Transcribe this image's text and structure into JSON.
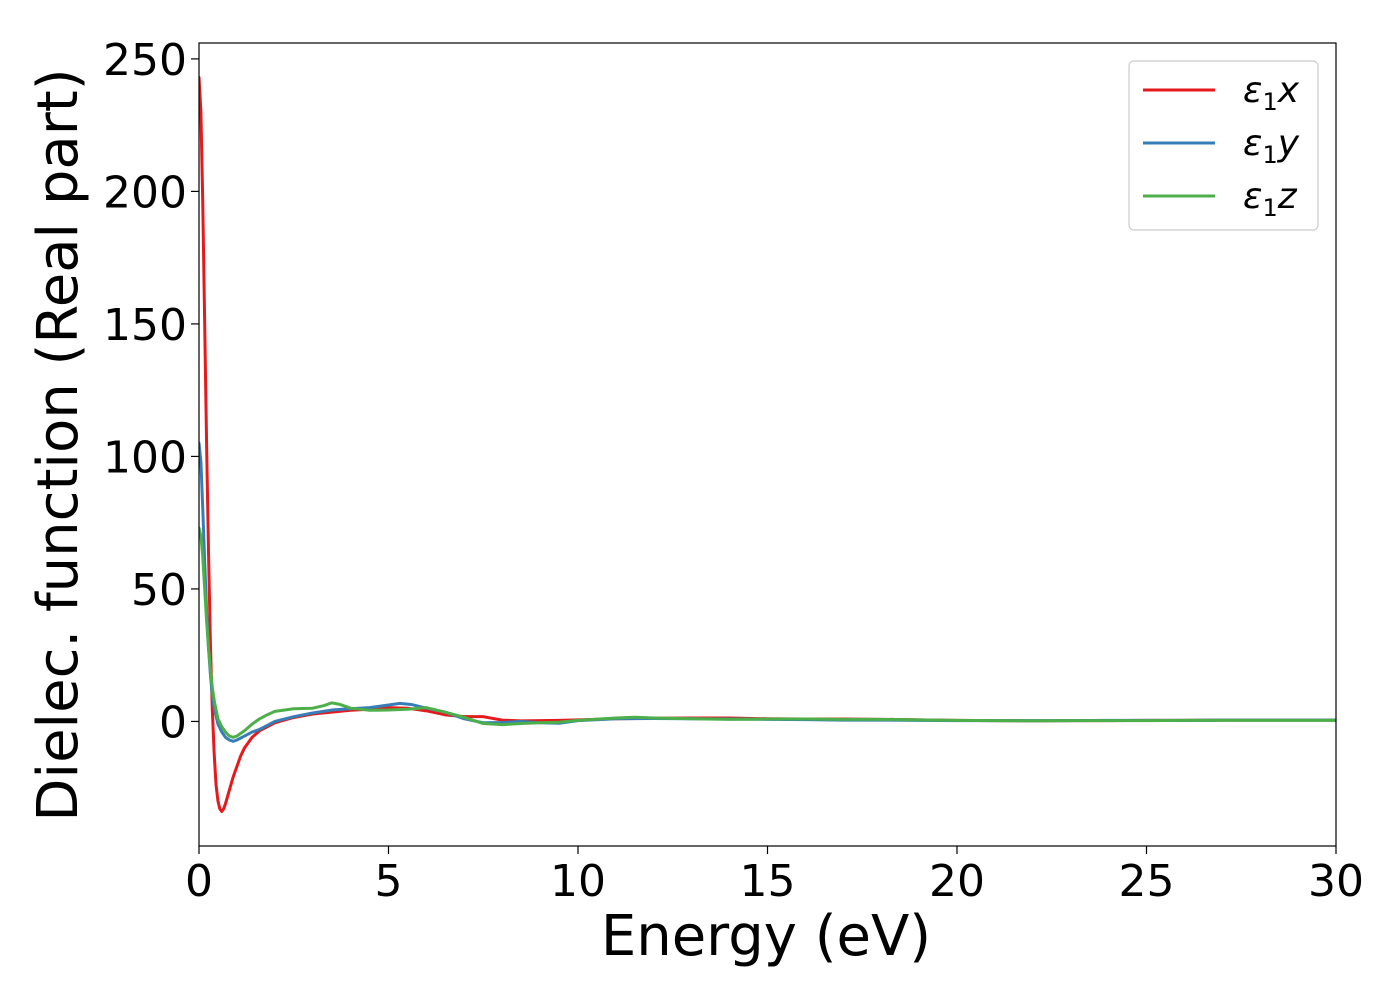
{
  "chart_data": {
    "type": "line",
    "title": "",
    "xlabel": "Energy (eV)",
    "ylabel": "Dielec. function (Real part)",
    "xlim": [
      0,
      30
    ],
    "ylim": [
      -47,
      256
    ],
    "xticks": [
      0,
      5,
      10,
      15,
      20,
      25,
      30
    ],
    "yticks": [
      0,
      50,
      100,
      150,
      200,
      250
    ],
    "xtick_labels": [
      "0",
      "5",
      "10",
      "15",
      "20",
      "25",
      "30"
    ],
    "ytick_labels": [
      "0",
      "50",
      "100",
      "150",
      "200",
      "250"
    ],
    "grid": false,
    "legend_position": "top-right",
    "series": [
      {
        "name": "ε1x",
        "name_base": "ε",
        "name_sub": "1",
        "name_var": "x",
        "color": "#e41a1c",
        "x": [
          0.0,
          0.05,
          0.1,
          0.15,
          0.2,
          0.25,
          0.3,
          0.35,
          0.4,
          0.45,
          0.5,
          0.55,
          0.6,
          0.65,
          0.7,
          0.8,
          0.9,
          1.0,
          1.1,
          1.2,
          1.4,
          1.6,
          1.8,
          2.0,
          2.5,
          3.0,
          3.5,
          4.0,
          4.5,
          5.0,
          5.5,
          6.0,
          6.5,
          7.0,
          7.5,
          8.0,
          8.5,
          9.0,
          9.5,
          10.0,
          11.0,
          12.0,
          13.0,
          14.0,
          15.0,
          16.0,
          17.0,
          18.0,
          19.0,
          20.0,
          21.0,
          22.0,
          23.0,
          24.0,
          25.0,
          26.0,
          27.0,
          28.0,
          29.0,
          30.0
        ],
        "values": [
          243,
          230,
          195,
          150,
          105,
          65,
          30,
          5,
          -12,
          -24,
          -30,
          -33,
          -34,
          -33,
          -31,
          -26,
          -21,
          -17,
          -13,
          -10,
          -6,
          -3.5,
          -2,
          -0.5,
          1.5,
          2.8,
          3.5,
          4.2,
          4.6,
          5.2,
          5.0,
          4.0,
          2.5,
          1.8,
          1.8,
          0.5,
          0.2,
          0.3,
          0.4,
          0.6,
          1.0,
          1.2,
          1.3,
          1.3,
          1.0,
          0.9,
          0.9,
          0.8,
          0.6,
          0.4,
          0.3,
          0.2,
          0.3,
          0.3,
          0.4,
          0.4,
          0.5,
          0.5,
          0.5,
          0.5
        ]
      },
      {
        "name": "ε1y",
        "name_base": "ε",
        "name_sub": "1",
        "name_var": "y",
        "color": "#377eb8",
        "x": [
          0.0,
          0.05,
          0.1,
          0.15,
          0.2,
          0.25,
          0.3,
          0.35,
          0.4,
          0.5,
          0.6,
          0.7,
          0.8,
          0.9,
          1.0,
          1.2,
          1.4,
          1.6,
          1.8,
          2.0,
          2.5,
          3.0,
          3.5,
          4.0,
          4.5,
          5.0,
          5.3,
          5.6,
          6.0,
          6.5,
          7.0,
          7.5,
          8.0,
          8.5,
          9.0,
          9.5,
          10.0,
          11.0,
          12.0,
          13.0,
          14.0,
          15.0,
          16.0,
          17.0,
          18.0,
          19.0,
          20.0,
          21.0,
          22.0,
          23.0,
          24.0,
          25.0,
          26.0,
          27.0,
          28.0,
          29.0,
          30.0
        ],
        "values": [
          105,
          98,
          80,
          60,
          42,
          28,
          18,
          10,
          5,
          -1,
          -4,
          -6,
          -7,
          -7.5,
          -7,
          -5.5,
          -4,
          -3,
          -1.5,
          0,
          1.8,
          3.2,
          4.3,
          4.8,
          5.2,
          6.2,
          6.8,
          6.4,
          5.0,
          3.5,
          1.0,
          -0.5,
          -0.4,
          0.0,
          -0.5,
          -0.7,
          0.3,
          1.0,
          1.1,
          1.0,
          0.9,
          0.8,
          0.7,
          0.5,
          0.5,
          0.4,
          0.3,
          0.3,
          0.3,
          0.3,
          0.4,
          0.4,
          0.4,
          0.5,
          0.5,
          0.5,
          0.5
        ]
      },
      {
        "name": "ε1z",
        "name_base": "ε",
        "name_sub": "1",
        "name_var": "z",
        "color": "#4daf4a",
        "x": [
          0.0,
          0.05,
          0.1,
          0.15,
          0.2,
          0.25,
          0.3,
          0.35,
          0.4,
          0.5,
          0.6,
          0.7,
          0.8,
          0.9,
          1.0,
          1.2,
          1.4,
          1.6,
          1.8,
          2.0,
          2.5,
          3.0,
          3.3,
          3.5,
          3.7,
          4.0,
          4.5,
          5.0,
          5.5,
          6.0,
          6.5,
          7.0,
          7.5,
          8.0,
          8.5,
          9.0,
          9.5,
          10.0,
          11.0,
          11.5,
          12.0,
          13.0,
          14.0,
          15.0,
          16.0,
          17.0,
          18.0,
          19.0,
          20.0,
          21.0,
          22.0,
          23.0,
          24.0,
          25.0,
          26.0,
          27.0,
          28.0,
          29.0,
          30.0
        ],
        "values": [
          73,
          70,
          62,
          50,
          38,
          28,
          20,
          13,
          8,
          1,
          -2,
          -4,
          -5.5,
          -6,
          -5.5,
          -3.5,
          -1,
          1.0,
          2.5,
          3.8,
          4.8,
          5.0,
          6.0,
          7.0,
          6.5,
          5.0,
          4.2,
          4.3,
          4.6,
          5.2,
          3.5,
          1.5,
          -0.8,
          -1.2,
          -0.8,
          -0.5,
          -0.3,
          0.4,
          1.3,
          1.6,
          1.3,
          1.0,
          0.8,
          0.9,
          0.9,
          0.8,
          0.8,
          0.6,
          0.4,
          0.3,
          0.2,
          0.3,
          0.3,
          0.3,
          0.4,
          0.4,
          0.4,
          0.4,
          0.4
        ]
      }
    ]
  }
}
